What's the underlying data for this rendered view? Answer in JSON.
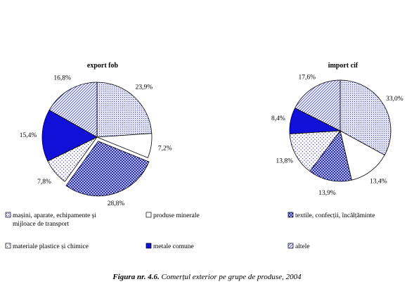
{
  "chart_data": [
    {
      "type": "pie",
      "title": "export fob",
      "slices": [
        {
          "category": "mașini, aparate, echipamente și mijloace de transport",
          "value": 23.9,
          "label": "23,9%",
          "pattern": "dots-blue"
        },
        {
          "category": "produse minerale",
          "value": 7.2,
          "label": "7,2%",
          "pattern": "white"
        },
        {
          "category": "textile, confecții, încălțăminte",
          "value": 28.8,
          "label": "28,8%",
          "pattern": "crosshatch-blue"
        },
        {
          "category": "materiale plastice și chimice",
          "value": 7.8,
          "label": "7,8%",
          "pattern": "dots-sparse"
        },
        {
          "category": "metale comune",
          "value": 15.4,
          "label": "15,4%",
          "pattern": "solid-blue"
        },
        {
          "category": "altele",
          "value": 16.8,
          "label": "16,8%",
          "pattern": "diag-blue"
        }
      ]
    },
    {
      "type": "pie",
      "title": "import cif",
      "slices": [
        {
          "category": "mașini, aparate, echipamente și mijloace de transport",
          "value": 33.0,
          "label": "33,0%",
          "pattern": "dots-blue"
        },
        {
          "category": "produse minerale",
          "value": 13.4,
          "label": "13,4%",
          "pattern": "white"
        },
        {
          "category": "textile, confecții, încălțăminte",
          "value": 13.9,
          "label": "13,9%",
          "pattern": "crosshatch-blue"
        },
        {
          "category": "materiale plastice și chimice",
          "value": 13.8,
          "label": "13,8%",
          "pattern": "dots-sparse"
        },
        {
          "category": "metale comune",
          "value": 8.4,
          "label": "8,4%",
          "pattern": "solid-blue"
        },
        {
          "category": "altele",
          "value": 17.6,
          "label": "17,6%",
          "pattern": "diag-blue"
        }
      ]
    }
  ],
  "legend": [
    {
      "line1": "mașini, aparate, echipamente și",
      "line2": "mijloace de transport",
      "pattern": "dots-blue"
    },
    {
      "line1": "produse minerale",
      "line2": "",
      "pattern": "white"
    },
    {
      "line1": "textile, confecții, încălțăminte",
      "line2": "",
      "pattern": "crosshatch-blue"
    },
    {
      "line1": "materiale plastice și chimice",
      "line2": "",
      "pattern": "dots-sparse"
    },
    {
      "line1": "metale comune",
      "line2": "",
      "pattern": "solid-blue"
    },
    {
      "line1": "altele",
      "line2": "",
      "pattern": "diag-blue"
    }
  ],
  "caption": {
    "number": "Figura nr. 4.6.",
    "text": "Comerțul exterior pe grupe de produse, 2004"
  }
}
